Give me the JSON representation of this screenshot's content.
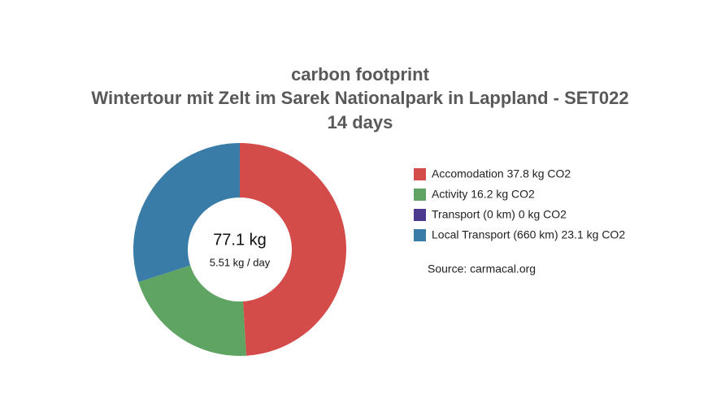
{
  "chart_data": {
    "type": "donut",
    "title": [
      "carbon footprint",
      "Wintertour mit Zelt im Sarek Nationalpark in Lappland - SET022",
      "14 days"
    ],
    "categories": [
      "Accomodation 37.8 kg CO2",
      "Activity 16.2 kg CO2",
      "Transport (0 km) 0 kg CO2",
      "Local Transport (660 km) 23.1 kg CO2"
    ],
    "values": [
      37.8,
      16.2,
      0,
      23.1
    ],
    "colors": [
      "#d44c4a",
      "#5fa463",
      "#4b3a8e",
      "#3a7ca8"
    ],
    "center_total": "77.1 kg",
    "center_per_day": "5.51 kg / day",
    "source": "Source: carmacal.org"
  }
}
